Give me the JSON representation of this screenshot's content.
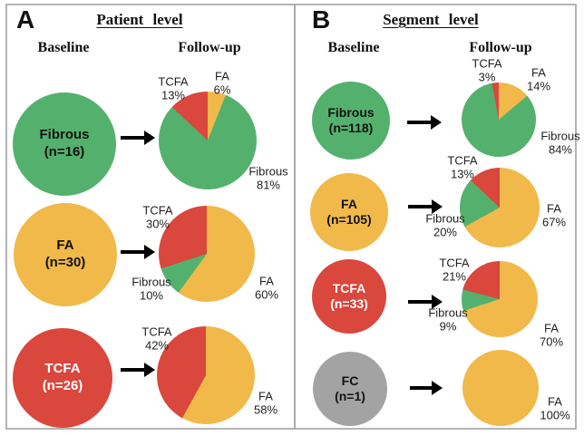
{
  "palette": {
    "fibrous": "#54B16D",
    "fa": "#F0B94A",
    "tcfa": "#D9473D",
    "fc": "#A3A3A3",
    "arrow": "#000000",
    "border": "#B4B4B4",
    "label_text": "#1F1F1F"
  },
  "ui": {
    "panels": [
      {
        "letter": "A",
        "title": "Patient level",
        "baseline": "Baseline",
        "followup": "Follow-up"
      },
      {
        "letter": "B",
        "title": "Segment level",
        "baseline": "Baseline",
        "followup": "Follow-up"
      }
    ]
  },
  "chart_data": [
    {
      "type": "pie",
      "panel": "A",
      "row": 0,
      "unit": "%",
      "baseline": {
        "label": "Fibrous",
        "n_label": "(n=16)",
        "category": "fibrous"
      },
      "slices": [
        {
          "name": "FA",
          "value": 6,
          "category": "fa"
        },
        {
          "name": "Fibrous",
          "value": 81,
          "category": "fibrous"
        },
        {
          "name": "TCFA",
          "value": 13,
          "category": "tcfa"
        }
      ]
    },
    {
      "type": "pie",
      "panel": "A",
      "row": 1,
      "unit": "%",
      "baseline": {
        "label": "FA",
        "n_label": "(n=30)",
        "category": "fa"
      },
      "slices": [
        {
          "name": "FA",
          "value": 60,
          "category": "fa"
        },
        {
          "name": "Fibrous",
          "value": 10,
          "category": "fibrous"
        },
        {
          "name": "TCFA",
          "value": 30,
          "category": "tcfa"
        }
      ]
    },
    {
      "type": "pie",
      "panel": "A",
      "row": 2,
      "unit": "%",
      "baseline": {
        "label": "TCFA",
        "n_label": "(n=26)",
        "category": "tcfa"
      },
      "slices": [
        {
          "name": "FA",
          "value": 58,
          "category": "fa"
        },
        {
          "name": "TCFA",
          "value": 42,
          "category": "tcfa"
        }
      ]
    },
    {
      "type": "pie",
      "panel": "B",
      "row": 0,
      "unit": "%",
      "baseline": {
        "label": "Fibrous",
        "n_label": "(n=118)",
        "category": "fibrous"
      },
      "slices": [
        {
          "name": "FA",
          "value": 14,
          "category": "fa"
        },
        {
          "name": "Fibrous",
          "value": 84,
          "category": "fibrous"
        },
        {
          "name": "TCFA",
          "value": 3,
          "category": "tcfa"
        }
      ]
    },
    {
      "type": "pie",
      "panel": "B",
      "row": 1,
      "unit": "%",
      "baseline": {
        "label": "FA",
        "n_label": "(n=105)",
        "category": "fa"
      },
      "slices": [
        {
          "name": "FA",
          "value": 67,
          "category": "fa"
        },
        {
          "name": "Fibrous",
          "value": 20,
          "category": "fibrous"
        },
        {
          "name": "TCFA",
          "value": 13,
          "category": "tcfa"
        }
      ]
    },
    {
      "type": "pie",
      "panel": "B",
      "row": 2,
      "unit": "%",
      "baseline": {
        "label": "TCFA",
        "n_label": "(n=33)",
        "category": "tcfa"
      },
      "slices": [
        {
          "name": "FA",
          "value": 70,
          "category": "fa"
        },
        {
          "name": "Fibrous",
          "value": 9,
          "category": "fibrous"
        },
        {
          "name": "TCFA",
          "value": 21,
          "category": "tcfa"
        }
      ]
    },
    {
      "type": "pie",
      "panel": "B",
      "row": 3,
      "unit": "%",
      "baseline": {
        "label": "FC",
        "n_label": "(n=1)",
        "category": "fc"
      },
      "slices": [
        {
          "name": "FA",
          "value": 100,
          "category": "fa"
        }
      ]
    }
  ]
}
